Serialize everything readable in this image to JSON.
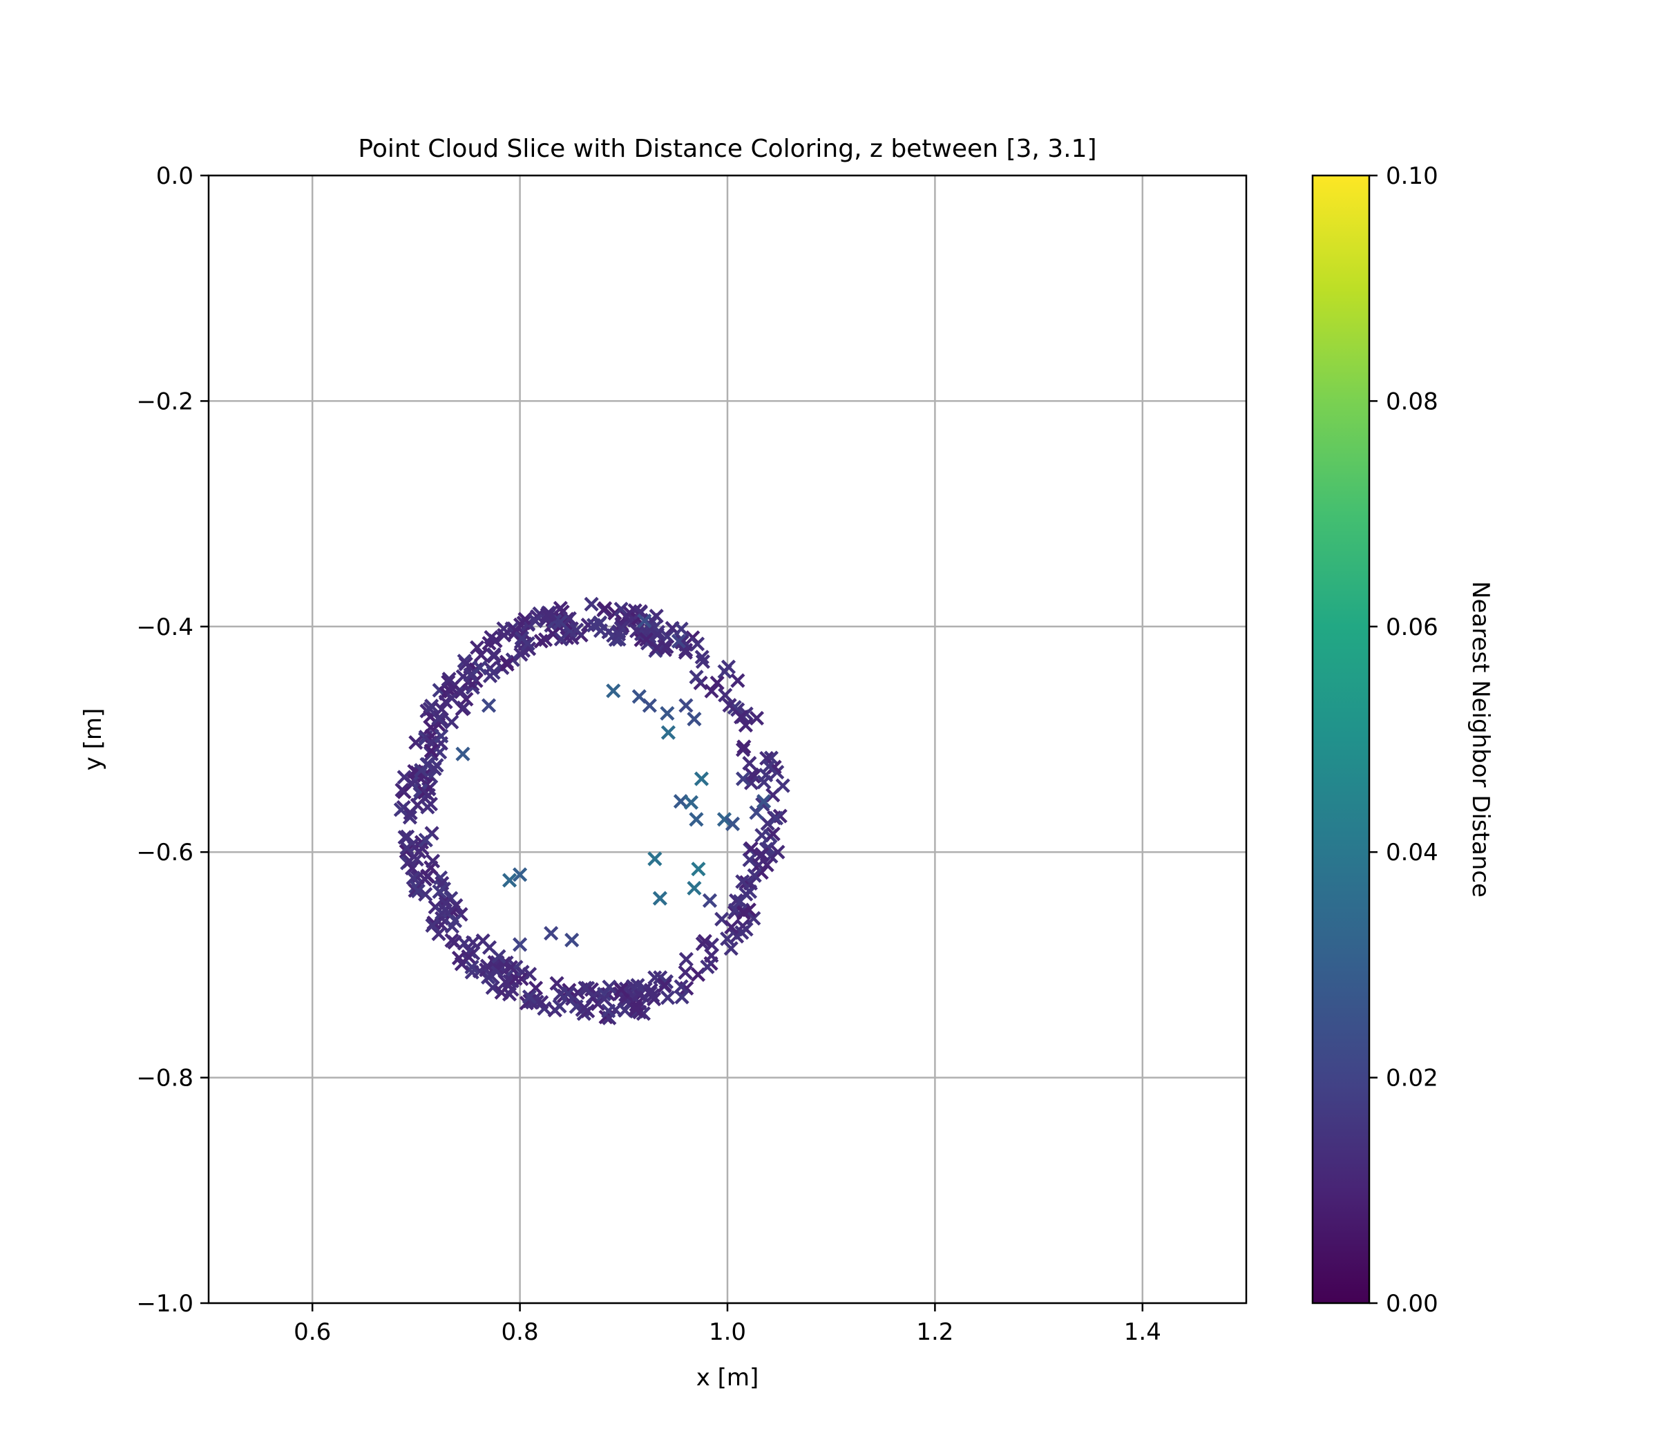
{
  "chart_data": {
    "type": "scatter",
    "title": "Point Cloud Slice with Distance Coloring, z between [3, 3.1]",
    "xlabel": "x [m]",
    "ylabel": "y [m]",
    "xlim": [
      0.5,
      1.5
    ],
    "ylim": [
      -1.0,
      0.0
    ],
    "xticks": [
      "0.6",
      "0.8",
      "1.0",
      "1.2",
      "1.4"
    ],
    "xtick_values": [
      0.6,
      0.8,
      1.0,
      1.2,
      1.4
    ],
    "yticks": [
      "0.0",
      "−0.2",
      "−0.4",
      "−0.6",
      "−0.8",
      "−1.0"
    ],
    "ytick_values": [
      0.0,
      -0.2,
      -0.4,
      -0.6,
      -0.8,
      -1.0
    ],
    "grid": true,
    "marker": "x",
    "colormap": "viridis",
    "colorbar": {
      "label": "Nearest Neighbor Distance",
      "range": [
        0.0,
        0.1
      ],
      "ticks": [
        "0.00",
        "0.02",
        "0.04",
        "0.06",
        "0.08",
        "0.10"
      ],
      "tick_values": [
        0.0,
        0.02,
        0.04,
        0.06,
        0.08,
        0.1
      ]
    },
    "ring": {
      "center": [
        0.87,
        -0.565
      ],
      "radius_inner": 0.155,
      "radius_outer": 0.185,
      "point_count": 560,
      "typical_distance": 0.012
    },
    "points": [
      {
        "x": 0.89,
        "y": -0.457,
        "d": 0.032
      },
      {
        "x": 0.915,
        "y": -0.462,
        "d": 0.026
      },
      {
        "x": 0.925,
        "y": -0.47,
        "d": 0.024
      },
      {
        "x": 0.942,
        "y": -0.477,
        "d": 0.027
      },
      {
        "x": 0.943,
        "y": -0.494,
        "d": 0.036
      },
      {
        "x": 0.96,
        "y": -0.47,
        "d": 0.022
      },
      {
        "x": 0.968,
        "y": -0.482,
        "d": 0.024
      },
      {
        "x": 0.975,
        "y": -0.535,
        "d": 0.037
      },
      {
        "x": 0.955,
        "y": -0.555,
        "d": 0.028
      },
      {
        "x": 0.965,
        "y": -0.556,
        "d": 0.033
      },
      {
        "x": 0.97,
        "y": -0.571,
        "d": 0.03
      },
      {
        "x": 0.997,
        "y": -0.571,
        "d": 0.032
      },
      {
        "x": 0.93,
        "y": -0.606,
        "d": 0.038
      },
      {
        "x": 0.972,
        "y": -0.615,
        "d": 0.04
      },
      {
        "x": 0.968,
        "y": -0.632,
        "d": 0.038
      },
      {
        "x": 0.935,
        "y": -0.641,
        "d": 0.036
      },
      {
        "x": 0.79,
        "y": -0.625,
        "d": 0.034
      },
      {
        "x": 0.8,
        "y": -0.62,
        "d": 0.03
      },
      {
        "x": 0.745,
        "y": -0.513,
        "d": 0.028
      },
      {
        "x": 0.77,
        "y": -0.47,
        "d": 0.022
      },
      {
        "x": 0.983,
        "y": -0.643,
        "d": 0.02
      },
      {
        "x": 1.005,
        "y": -0.575,
        "d": 0.026
      },
      {
        "x": 1.015,
        "y": -0.535,
        "d": 0.018
      },
      {
        "x": 1.035,
        "y": -0.555,
        "d": 0.025
      },
      {
        "x": 1.028,
        "y": -0.565,
        "d": 0.022
      },
      {
        "x": 0.92,
        "y": -0.395,
        "d": 0.024
      },
      {
        "x": 0.953,
        "y": -0.413,
        "d": 0.02
      },
      {
        "x": 0.85,
        "y": -0.678,
        "d": 0.022
      },
      {
        "x": 0.83,
        "y": -0.672,
        "d": 0.02
      },
      {
        "x": 0.8,
        "y": -0.682,
        "d": 0.02
      }
    ]
  }
}
